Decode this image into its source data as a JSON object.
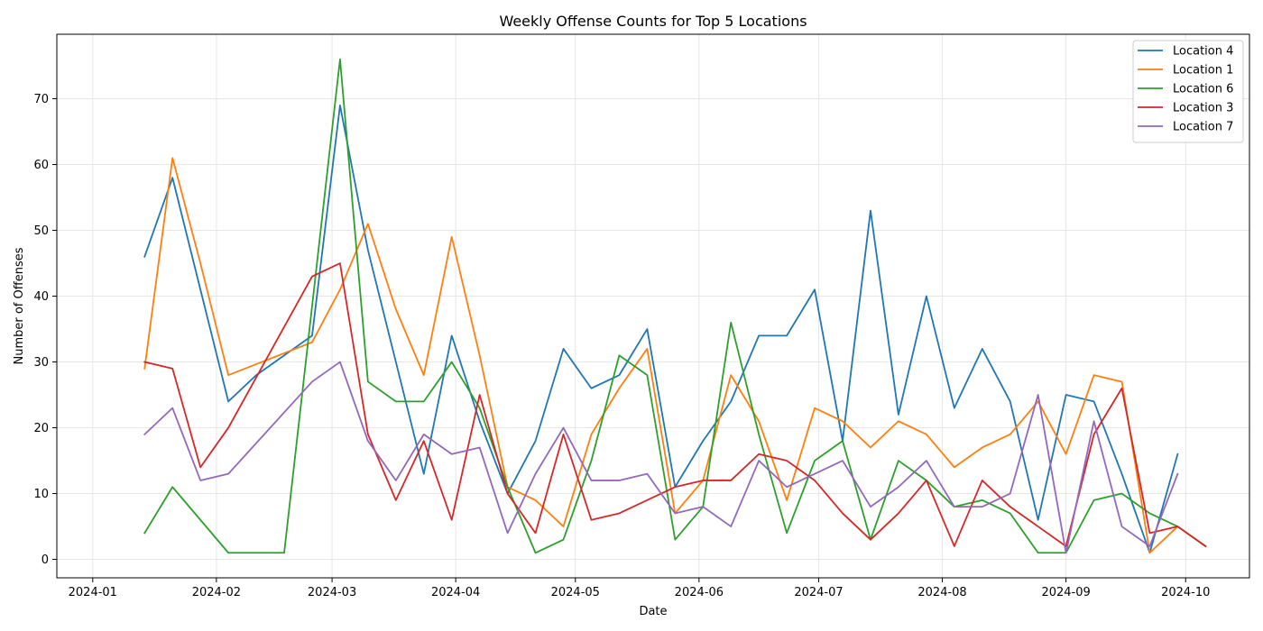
{
  "chart_data": {
    "type": "line",
    "title": "Weekly Offense Counts for Top 5 Locations",
    "xlabel": "Date",
    "ylabel": "Number of Offenses",
    "xlim": [
      "2023-12-23",
      "2024-10-17"
    ],
    "ylim": [
      -2.8,
      79.8
    ],
    "x_ticks": [
      "2024-01-01",
      "2024-02-01",
      "2024-03-01",
      "2024-04-01",
      "2024-05-01",
      "2024-06-01",
      "2024-07-01",
      "2024-08-01",
      "2024-09-01",
      "2024-10-01"
    ],
    "x_tick_labels": [
      "2024-01",
      "2024-02",
      "2024-03",
      "2024-04",
      "2024-05",
      "2024-06",
      "2024-07",
      "2024-08",
      "2024-09",
      "2024-10"
    ],
    "y_ticks": [
      0,
      10,
      20,
      30,
      40,
      50,
      60,
      70
    ],
    "y_tick_labels": [
      "0",
      "10",
      "20",
      "30",
      "40",
      "50",
      "60",
      "70"
    ],
    "grid": true,
    "legend_position": "top-right",
    "series": [
      {
        "name": "Location 4",
        "color": "#1f77b4",
        "x": [
          "2024-01-14",
          "2024-01-21",
          "2024-01-28",
          "2024-02-04",
          "2024-02-11",
          "2024-02-18",
          "2024-02-25",
          "2024-03-03",
          "2024-03-10",
          "2024-03-17",
          "2024-03-24",
          "2024-03-31",
          "2024-04-07",
          "2024-04-14",
          "2024-04-21",
          "2024-04-28",
          "2024-05-05",
          "2024-05-12",
          "2024-05-19",
          "2024-05-26",
          "2024-06-02",
          "2024-06-09",
          "2024-06-16",
          "2024-06-23",
          "2024-06-30",
          "2024-07-07",
          "2024-07-14",
          "2024-07-21",
          "2024-07-28",
          "2024-08-04",
          "2024-08-11",
          "2024-08-18",
          "2024-08-25",
          "2024-09-01",
          "2024-09-08",
          "2024-09-15",
          "2024-09-22",
          "2024-09-29"
        ],
        "y": [
          46,
          58,
          41,
          24,
          28,
          31,
          34,
          69,
          47,
          30,
          13,
          34,
          21,
          10,
          18,
          32,
          26,
          28,
          35,
          11,
          18,
          24,
          34,
          34,
          41,
          18,
          53,
          22,
          40,
          23,
          32,
          24,
          6,
          25,
          24,
          13,
          1,
          16
        ]
      },
      {
        "name": "Location 1",
        "color": "#ff7f0e",
        "x": [
          "2024-01-14",
          "2024-01-21",
          "2024-01-28",
          "2024-02-04",
          "2024-02-25",
          "2024-03-03",
          "2024-03-10",
          "2024-03-17",
          "2024-03-24",
          "2024-03-31",
          "2024-04-07",
          "2024-04-14",
          "2024-04-21",
          "2024-04-28",
          "2024-05-05",
          "2024-05-12",
          "2024-05-19",
          "2024-05-26",
          "2024-06-02",
          "2024-06-09",
          "2024-06-16",
          "2024-06-23",
          "2024-06-30",
          "2024-07-07",
          "2024-07-14",
          "2024-07-21",
          "2024-07-28",
          "2024-08-04",
          "2024-08-11",
          "2024-08-18",
          "2024-08-25",
          "2024-09-01",
          "2024-09-08",
          "2024-09-15",
          "2024-09-22",
          "2024-09-29",
          "2024-10-06"
        ],
        "y": [
          29,
          61,
          45,
          28,
          33,
          41,
          51,
          38,
          28,
          49,
          31,
          11,
          9,
          5,
          19,
          26,
          32,
          7,
          12,
          28,
          21,
          9,
          23,
          21,
          17,
          21,
          19,
          14,
          17,
          19,
          24,
          16,
          28,
          27,
          1,
          5,
          2
        ]
      },
      {
        "name": "Location 6",
        "color": "#2ca02c",
        "x": [
          "2024-01-14",
          "2024-01-21",
          "2024-01-28",
          "2024-02-04",
          "2024-02-11",
          "2024-02-18",
          "2024-03-03",
          "2024-03-10",
          "2024-03-17",
          "2024-03-24",
          "2024-03-31",
          "2024-04-07",
          "2024-04-14",
          "2024-04-21",
          "2024-04-28",
          "2024-05-05",
          "2024-05-12",
          "2024-05-19",
          "2024-05-26",
          "2024-06-02",
          "2024-06-09",
          "2024-06-16",
          "2024-06-23",
          "2024-06-30",
          "2024-07-07",
          "2024-07-14",
          "2024-07-21",
          "2024-07-28",
          "2024-08-04",
          "2024-08-11",
          "2024-08-18",
          "2024-08-25",
          "2024-09-01",
          "2024-09-08",
          "2024-09-15",
          "2024-09-22",
          "2024-09-29",
          "2024-10-06"
        ],
        "y": [
          4,
          11,
          6,
          1,
          1,
          1,
          76,
          27,
          24,
          24,
          30,
          23,
          11,
          1,
          3,
          15,
          31,
          28,
          3,
          8,
          36,
          19,
          4,
          15,
          18,
          3,
          15,
          12,
          8,
          9,
          7,
          1,
          1,
          9,
          10,
          7,
          5,
          2
        ]
      },
      {
        "name": "Location 3",
        "color": "#d62728",
        "x": [
          "2024-01-14",
          "2024-01-21",
          "2024-01-28",
          "2024-02-04",
          "2024-02-25",
          "2024-03-03",
          "2024-03-10",
          "2024-03-17",
          "2024-03-24",
          "2024-03-31",
          "2024-04-07",
          "2024-04-14",
          "2024-04-21",
          "2024-04-28",
          "2024-05-05",
          "2024-05-12",
          "2024-05-19",
          "2024-05-26",
          "2024-06-02",
          "2024-06-09",
          "2024-06-16",
          "2024-06-23",
          "2024-06-30",
          "2024-07-07",
          "2024-07-14",
          "2024-07-21",
          "2024-07-28",
          "2024-08-04",
          "2024-08-11",
          "2024-08-18",
          "2024-08-25",
          "2024-09-01",
          "2024-09-08",
          "2024-09-15",
          "2024-09-22",
          "2024-09-29",
          "2024-10-06"
        ],
        "y": [
          30,
          29,
          14,
          20,
          43,
          45,
          19,
          9,
          18,
          6,
          25,
          10,
          4,
          19,
          6,
          7,
          9,
          11,
          12,
          12,
          16,
          15,
          12,
          7,
          3,
          7,
          12,
          2,
          12,
          8,
          5,
          2,
          19,
          26,
          4,
          5,
          2
        ]
      },
      {
        "name": "Location 7",
        "color": "#9467bd",
        "x": [
          "2024-01-14",
          "2024-01-21",
          "2024-01-28",
          "2024-02-04",
          "2024-02-25",
          "2024-03-03",
          "2024-03-10",
          "2024-03-17",
          "2024-03-24",
          "2024-03-31",
          "2024-04-07",
          "2024-04-14",
          "2024-04-21",
          "2024-04-28",
          "2024-05-05",
          "2024-05-12",
          "2024-05-19",
          "2024-05-26",
          "2024-06-02",
          "2024-06-09",
          "2024-06-16",
          "2024-06-23",
          "2024-06-30",
          "2024-07-07",
          "2024-07-14",
          "2024-07-21",
          "2024-07-28",
          "2024-08-04",
          "2024-08-11",
          "2024-08-18",
          "2024-08-25",
          "2024-09-01",
          "2024-09-08",
          "2024-09-15",
          "2024-09-22",
          "2024-09-29"
        ],
        "y": [
          19,
          23,
          12,
          13,
          27,
          30,
          18,
          12,
          19,
          16,
          17,
          4,
          13,
          20,
          12,
          12,
          13,
          7,
          8,
          5,
          15,
          11,
          13,
          15,
          8,
          11,
          15,
          8,
          8,
          10,
          25,
          1,
          21,
          5,
          2,
          13
        ]
      }
    ]
  }
}
